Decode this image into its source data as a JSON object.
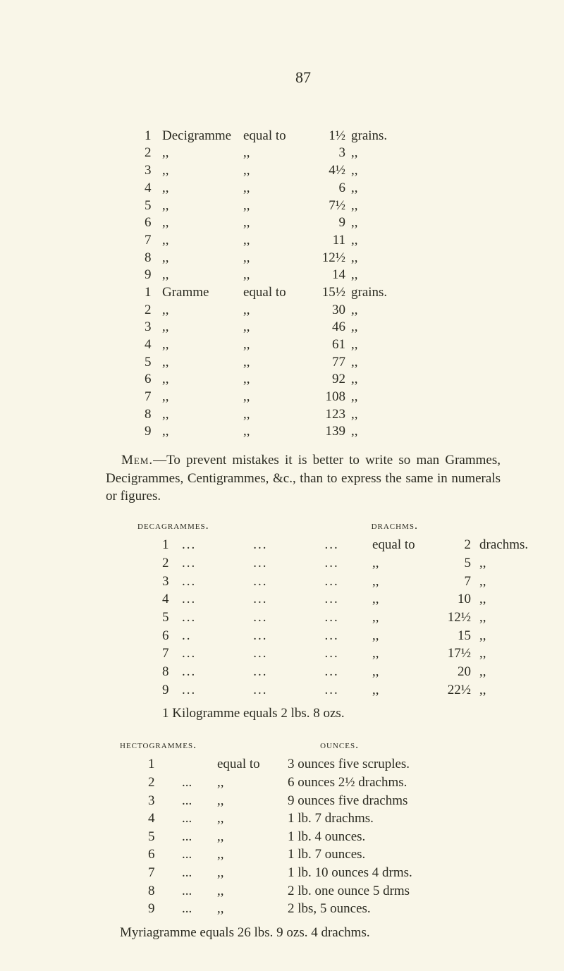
{
  "page_number": "87",
  "decigramme_header": {
    "num": "1",
    "unit": "Decigramme",
    "equal": "equal to",
    "value": "1½",
    "suffix": "grains."
  },
  "decigrammes": [
    {
      "num": "2",
      "unit": ",,",
      "equal": ",,",
      "value": "3",
      "suffix": ",,"
    },
    {
      "num": "3",
      "unit": ",,",
      "equal": ",,",
      "value": "4½",
      "suffix": ",,"
    },
    {
      "num": "4",
      "unit": ",,",
      "equal": ",,",
      "value": "6",
      "suffix": ",,"
    },
    {
      "num": "5",
      "unit": ",,",
      "equal": ",,",
      "value": "7½",
      "suffix": ",,"
    },
    {
      "num": "6",
      "unit": ",,",
      "equal": ",,",
      "value": "9",
      "suffix": ",,"
    },
    {
      "num": "7",
      "unit": ",,",
      "equal": ",,",
      "value": "11",
      "suffix": ",,"
    },
    {
      "num": "8",
      "unit": ",,",
      "equal": ",,",
      "value": "12½",
      "suffix": ",,"
    },
    {
      "num": "9",
      "unit": ",,",
      "equal": ",,",
      "value": "14",
      "suffix": ",,"
    }
  ],
  "gramme_header": {
    "num": "1",
    "unit": "Gramme",
    "equal": "equal to",
    "value": "15½",
    "suffix": "grains."
  },
  "grammes": [
    {
      "num": "2",
      "unit": ",,",
      "equal": ",,",
      "value": "30",
      "suffix": ",,"
    },
    {
      "num": "3",
      "unit": ",,",
      "equal": ",,",
      "value": "46",
      "suffix": ",,"
    },
    {
      "num": "4",
      "unit": ",,",
      "equal": ",,",
      "value": "61",
      "suffix": ",,"
    },
    {
      "num": "5",
      "unit": ",,",
      "equal": ",,",
      "value": "77",
      "suffix": ",,"
    },
    {
      "num": "6",
      "unit": ",,",
      "equal": ",,",
      "value": "92",
      "suffix": ",,"
    },
    {
      "num": "7",
      "unit": ",,",
      "equal": ",,",
      "value": "108",
      "suffix": ",,"
    },
    {
      "num": "8",
      "unit": ",,",
      "equal": ",,",
      "value": "123",
      "suffix": ",,"
    },
    {
      "num": "9",
      "unit": ",,",
      "equal": ",,",
      "value": "139",
      "suffix": ",,"
    }
  ],
  "mem_label": "Mem.",
  "mem_text": "—To prevent mistakes it is better to write so man Grammes, Decigrammes, Centigrammes, &c., than to express the same in numerals or figures.",
  "deca_heading": "decagrammes.",
  "drachm_heading": "drachms.",
  "decagrammes": [
    {
      "num": "1",
      "dots": "...            ...            ...",
      "eq": "equal to",
      "val": "2",
      "suf": "drachms."
    },
    {
      "num": "2",
      "dots": "...            ...            ...",
      "eq": ",,",
      "val": "5",
      "suf": ",,"
    },
    {
      "num": "3",
      "dots": "...            ...            ...",
      "eq": ",,",
      "val": "7",
      "suf": ",,"
    },
    {
      "num": "4",
      "dots": "...            ...            ...",
      "eq": ",,",
      "val": "10",
      "suf": ",,"
    },
    {
      "num": "5",
      "dots": "...            ...            ...",
      "eq": ",,",
      "val": "12½",
      "suf": ",,"
    },
    {
      "num": "6",
      "dots": "..             ...            ...",
      "eq": ",,",
      "val": "15",
      "suf": ",,"
    },
    {
      "num": "7",
      "dots": "...            ...            ...",
      "eq": ",,",
      "val": "17½",
      "suf": ",,"
    },
    {
      "num": "8",
      "dots": "...            ...            ...",
      "eq": ",,",
      "val": "20",
      "suf": ",,"
    },
    {
      "num": "9",
      "dots": "...            ...            ...",
      "eq": ",,",
      "val": "22½",
      "suf": ",,"
    }
  ],
  "kilo_line": "1 Kilogramme equals 2 lbs. 8 ozs.",
  "hecto_heading": "hectogrammes.",
  "ounces_heading": "ounces.",
  "hectogrammes": [
    {
      "num": "1",
      "dots": "",
      "eq": "equal to",
      "desc": "3 ounces five scruples."
    },
    {
      "num": "2",
      "dots": "...",
      "eq": ",,",
      "desc": "6 ounces 2½ drachms."
    },
    {
      "num": "3",
      "dots": "...",
      "eq": ",,",
      "desc": "9 ounces five drachms"
    },
    {
      "num": "4",
      "dots": "...",
      "eq": ",,",
      "desc": "1 lb. 7 drachms."
    },
    {
      "num": "5",
      "dots": "...",
      "eq": ",,",
      "desc": "1 lb. 4 ounces."
    },
    {
      "num": "6",
      "dots": "...",
      "eq": ",,",
      "desc": "1 lb. 7 ounces."
    },
    {
      "num": "7",
      "dots": "...",
      "eq": ",,",
      "desc": "1 lb. 10 ounces 4 drms."
    },
    {
      "num": "8",
      "dots": "...",
      "eq": ",,",
      "desc": "2 lb. one ounce 5 drms"
    },
    {
      "num": "9",
      "dots": "...",
      "eq": ",,",
      "desc": "2 lbs, 5 ounces."
    }
  ],
  "myria_line": "Myriagramme equals 26 lbs. 9 ozs. 4 drachms."
}
